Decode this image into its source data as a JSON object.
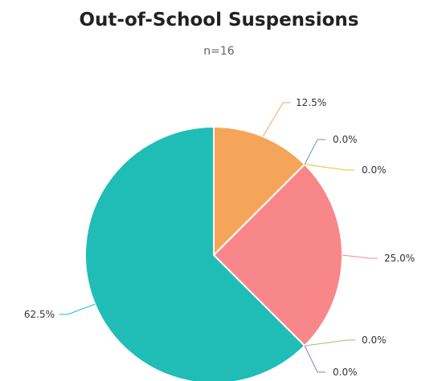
{
  "chart_data": {
    "type": "pie",
    "title": "Out-of-School Suspensions",
    "subtitle": "n=16",
    "slices": [
      {
        "value": 12.5,
        "label": "12.5%",
        "color": "#F5A55A"
      },
      {
        "value": 0.0,
        "label": "0.0%",
        "color": "#7B8CC7"
      },
      {
        "value": 0.0,
        "label": "0.0%",
        "color": "#E8C02E"
      },
      {
        "value": 25.0,
        "label": "25.0%",
        "color": "#F8878A"
      },
      {
        "value": 0.0,
        "label": "0.0%",
        "color": "#8DC878"
      },
      {
        "value": 0.0,
        "label": "0.0%",
        "color": "#9A70C4"
      },
      {
        "value": 62.5,
        "label": "62.5%",
        "color": "#1FBDB6"
      }
    ]
  }
}
